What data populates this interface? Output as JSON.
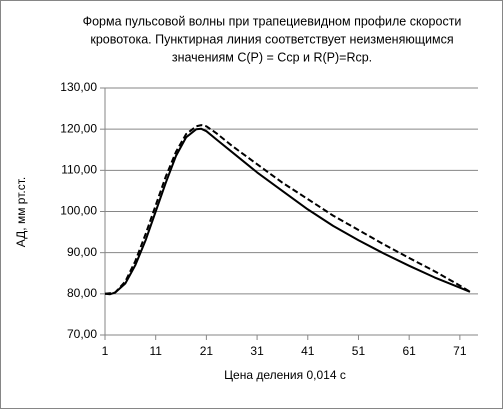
{
  "chart_data": {
    "type": "line",
    "title": [
      "Форма пульсовой волны при трапециевидном  профиле скорости",
      " кровотока. Пунктирная линия  соответствует неизменяющимся",
      "значениям C(P) = Cср и R(P)=Rср."
    ],
    "x_label": "Цена деления 0,014 с",
    "y_label": "АД, мм рт.ст.",
    "xlim": [
      1,
      73
    ],
    "xticks": [
      1,
      11,
      21,
      31,
      41,
      51,
      61,
      71
    ],
    "ylim": [
      70,
      130
    ],
    "yticks": [
      {
        "value": 70,
        "label": "70,00"
      },
      {
        "value": 80,
        "label": "80,00"
      },
      {
        "value": 90,
        "label": "90,00"
      },
      {
        "value": 100,
        "label": "100,00"
      },
      {
        "value": 110,
        "label": "110,00"
      },
      {
        "value": 120,
        "label": "120,00"
      },
      {
        "value": 130,
        "label": "130,00"
      }
    ],
    "grid": true,
    "series": [
      {
        "color": "#000000",
        "dash": false,
        "x": [
          1,
          2,
          3,
          5,
          7,
          9,
          11,
          13,
          15,
          17,
          19,
          20,
          21,
          23,
          26,
          31,
          36,
          41,
          46,
          51,
          56,
          61,
          66,
          71,
          73
        ],
        "values": [
          80,
          79.9,
          80.3,
          82.5,
          87,
          93,
          100,
          107,
          113.5,
          118,
          120,
          120.1,
          119.5,
          117.5,
          114.5,
          109.5,
          105,
          100.5,
          96.5,
          93,
          89.8,
          86.8,
          84,
          81.5,
          80.5
        ]
      },
      {
        "color": "#000000",
        "dash": true,
        "x": [
          1,
          3,
          5,
          7,
          9,
          11,
          13,
          15,
          17,
          19,
          20,
          21,
          23,
          26,
          31,
          36,
          41,
          46,
          51,
          56,
          61,
          66,
          71,
          73
        ],
        "values": [
          80,
          80.3,
          83,
          88,
          94.5,
          101.5,
          108.5,
          114.5,
          118.8,
          120.7,
          121,
          120.7,
          119,
          116,
          111.5,
          107,
          103,
          99,
          95.5,
          92,
          88.7,
          85.5,
          82,
          80.5
        ]
      }
    ]
  }
}
